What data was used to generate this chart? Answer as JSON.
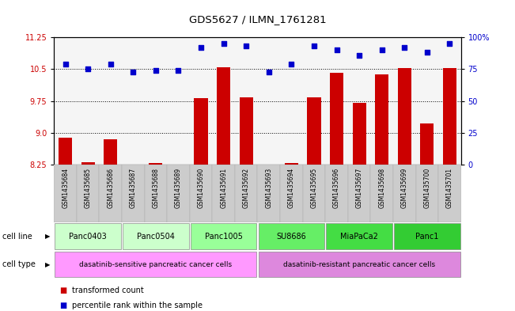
{
  "title": "GDS5627 / ILMN_1761281",
  "samples": [
    "GSM1435684",
    "GSM1435685",
    "GSM1435686",
    "GSM1435687",
    "GSM1435688",
    "GSM1435689",
    "GSM1435690",
    "GSM1435691",
    "GSM1435692",
    "GSM1435693",
    "GSM1435694",
    "GSM1435695",
    "GSM1435696",
    "GSM1435697",
    "GSM1435698",
    "GSM1435699",
    "GSM1435700",
    "GSM1435701"
  ],
  "transformed_counts": [
    8.88,
    8.32,
    8.86,
    8.24,
    8.3,
    8.26,
    9.82,
    10.55,
    9.83,
    8.25,
    8.3,
    9.83,
    10.42,
    9.7,
    10.38,
    10.53,
    9.22,
    10.52
  ],
  "percentile_ranks": [
    79,
    75,
    79,
    73,
    74,
    74,
    92,
    95,
    93,
    73,
    79,
    93,
    90,
    86,
    90,
    92,
    88,
    95
  ],
  "ylim_left": [
    8.25,
    11.25
  ],
  "ylim_right": [
    0,
    100
  ],
  "yticks_left": [
    8.25,
    9.0,
    9.75,
    10.5,
    11.25
  ],
  "yticks_right": [
    0,
    25,
    50,
    75,
    100
  ],
  "bar_color": "#cc0000",
  "dot_color": "#0000cc",
  "cell_lines": [
    {
      "name": "Panc0403",
      "start": 0,
      "end": 3,
      "color": "#ccffcc"
    },
    {
      "name": "Panc0504",
      "start": 3,
      "end": 6,
      "color": "#ccffcc"
    },
    {
      "name": "Panc1005",
      "start": 6,
      "end": 9,
      "color": "#99ff99"
    },
    {
      "name": "SU8686",
      "start": 9,
      "end": 12,
      "color": "#66ee66"
    },
    {
      "name": "MiaPaCa2",
      "start": 12,
      "end": 15,
      "color": "#44dd44"
    },
    {
      "name": "Panc1",
      "start": 15,
      "end": 18,
      "color": "#33cc33"
    }
  ],
  "cell_type_sensitive": {
    "name": "dasatinib-sensitive pancreatic cancer cells",
    "start": 0,
    "end": 9,
    "color": "#ff99ff"
  },
  "cell_type_resistant": {
    "name": "dasatinib-resistant pancreatic cancer cells",
    "start": 9,
    "end": 18,
    "color": "#dd88dd"
  },
  "legend_bar_label": "transformed count",
  "legend_dot_label": "percentile rank within the sample",
  "background_color": "#ffffff",
  "tick_label_color_left": "#cc0000",
  "tick_label_color_right": "#0000cc",
  "xticklabel_bg": "#cccccc"
}
